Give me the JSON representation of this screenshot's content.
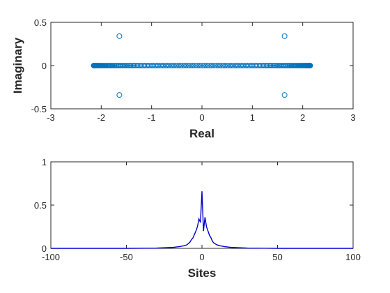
{
  "chart_data": [
    {
      "type": "scatter",
      "xlabel": "Real",
      "ylabel": "Imaginary",
      "xlim": [
        -3,
        3
      ],
      "ylim": [
        -0.5,
        0.5
      ],
      "xticks": [
        "-3",
        "-2",
        "-1",
        "0",
        "1",
        "2",
        "3"
      ],
      "yticks": [
        "-0.5",
        "0",
        "0.5"
      ],
      "grid": false,
      "marker_color": "#0072BD",
      "marker": "open-circle",
      "series": [
        {
          "points_on_real_axis": {
            "x_range": [
              -2.15,
              2.15
            ],
            "y": 0,
            "approx_count": 200
          },
          "off_axis_points": [
            {
              "x": -1.64,
              "y": 0.34
            },
            {
              "x": 1.64,
              "y": 0.34
            },
            {
              "x": -1.64,
              "y": -0.34
            },
            {
              "x": 1.64,
              "y": -0.34
            }
          ]
        }
      ]
    },
    {
      "type": "line",
      "xlabel": "Sites",
      "ylabel": "",
      "xlim": [
        -100,
        100
      ],
      "ylim": [
        0,
        1
      ],
      "xticks": [
        "-100",
        "-50",
        "0",
        "50",
        "100"
      ],
      "yticks": [
        "0",
        "0.5",
        "1"
      ],
      "grid": false,
      "line_color": "#0000CC",
      "series": [
        {
          "x": [
            -100,
            -50,
            -30,
            -20,
            -15,
            -12,
            -10,
            -8,
            -7,
            -6,
            -5,
            -4,
            -3,
            -2,
            -1,
            0,
            1,
            2,
            3,
            4,
            5,
            6,
            7,
            8,
            10,
            12,
            15,
            20,
            30,
            50,
            100
          ],
          "y": [
            0,
            0,
            0.003,
            0.01,
            0.02,
            0.03,
            0.04,
            0.07,
            0.1,
            0.12,
            0.16,
            0.2,
            0.25,
            0.34,
            0.3,
            0.66,
            0.2,
            0.36,
            0.25,
            0.2,
            0.15,
            0.12,
            0.08,
            0.06,
            0.04,
            0.03,
            0.02,
            0.01,
            0.003,
            0,
            0
          ]
        }
      ]
    }
  ]
}
